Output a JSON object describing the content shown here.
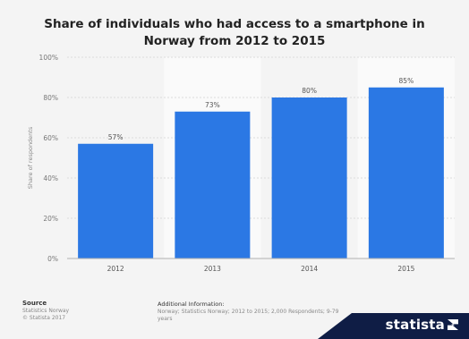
{
  "chart_data": {
    "type": "bar",
    "title": "Share of individuals who had access to a smartphone in Norway from 2012 to 2015",
    "ylabel": "Share of respondents",
    "xlabel": "",
    "categories": [
      "2012",
      "2013",
      "2014",
      "2015"
    ],
    "values": [
      57,
      73,
      80,
      85
    ],
    "data_labels": [
      "57%",
      "73%",
      "80%",
      "85%"
    ],
    "ylim": [
      0,
      100
    ],
    "yticks": [
      0,
      20,
      40,
      60,
      80,
      100
    ],
    "ytick_labels": [
      "0%",
      "20%",
      "40%",
      "60%",
      "80%",
      "100%"
    ],
    "grid": true,
    "bar_color": "#2b78e4"
  },
  "footer": {
    "source_heading": "Source",
    "source_lines": [
      "Statistics Norway",
      "© Statista 2017"
    ],
    "info_heading": "Additional Information:",
    "info_text": "Norway; Statistics Norway; 2012 to 2015; 2,000 Respondents; 9-79 years",
    "logo": "statista"
  }
}
